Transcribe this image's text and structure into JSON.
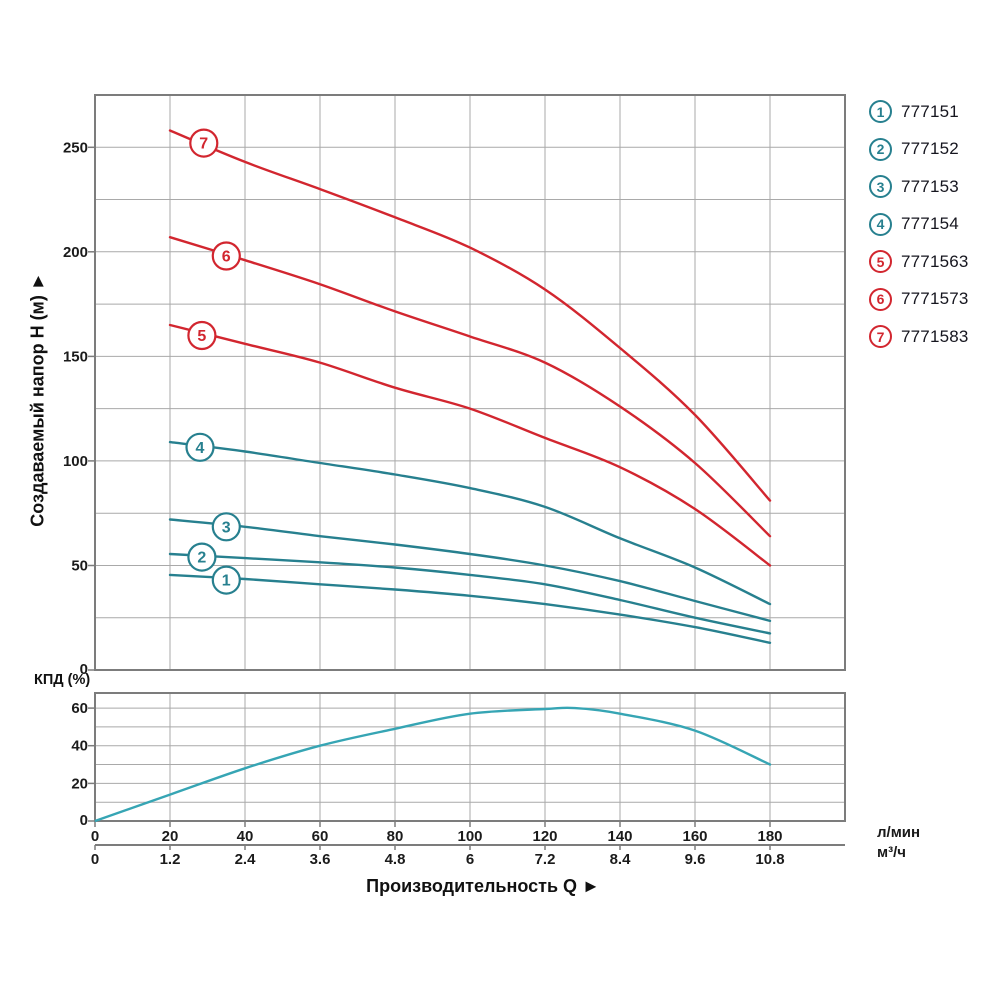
{
  "figure": {
    "y_axis_title": "Создаваемый напор H (м) ►",
    "x_axis_title": "Производительность Q ►",
    "eff_axis_label": "КПД (%)",
    "unit_flow_lmin": "л/мин",
    "unit_flow_m3h": "м³/ч"
  },
  "colors": {
    "teal_series": "#27808F",
    "red_series": "#D2262F",
    "efficiency_curve": "#36A5B4",
    "grid": "#A9A9A9",
    "border": "#7C7C7C",
    "tick_text": "#1B1B1B",
    "legend_text": "#16161F",
    "title_text": "#111111"
  },
  "legend": [
    {
      "num": "1",
      "code": "777151",
      "color": "#27808F"
    },
    {
      "num": "2",
      "code": "777152",
      "color": "#27808F"
    },
    {
      "num": "3",
      "code": "777153",
      "color": "#27808F"
    },
    {
      "num": "4",
      "code": "777154",
      "color": "#27808F"
    },
    {
      "num": "5",
      "code": "7771563",
      "color": "#D2262F"
    },
    {
      "num": "6",
      "code": "7771573",
      "color": "#D2262F"
    },
    {
      "num": "7",
      "code": "7771583",
      "color": "#D2262F"
    }
  ],
  "chart_data": [
    {
      "type": "line",
      "name": "head-flow-curves",
      "title": "",
      "xlabel": "Производительность Q ►",
      "ylabel": "Создаваемый напор H (м) ►",
      "x_units": [
        "л/мин",
        "м³/ч"
      ],
      "xlim": [
        0,
        200
      ],
      "ylim": [
        0,
        275
      ],
      "grid": true,
      "x_grid_step": 20,
      "y_grid_step": 25,
      "x_ticks_lmin": [
        0,
        20,
        40,
        60,
        80,
        100,
        120,
        140,
        160,
        180
      ],
      "x_ticks_m3h": [
        "0",
        "1.2",
        "2.4",
        "3.6",
        "4.8",
        "6",
        "7.2",
        "8.4",
        "9.6",
        "10.8"
      ],
      "y_ticks": [
        0,
        50,
        100,
        150,
        200,
        250
      ],
      "legend_position": "right",
      "series": [
        {
          "marker": "1",
          "name": "777151",
          "color": "#27808F",
          "label_at": [
            35,
            43
          ],
          "points": [
            [
              20,
              45.5
            ],
            [
              40,
              43.5
            ],
            [
              60,
              41
            ],
            [
              80,
              38.5
            ],
            [
              100,
              35.5
            ],
            [
              120,
              31.5
            ],
            [
              140,
              26.5
            ],
            [
              160,
              20.5
            ],
            [
              180,
              13
            ]
          ]
        },
        {
          "marker": "2",
          "name": "777152",
          "color": "#27808F",
          "label_at": [
            28.5,
            54
          ],
          "points": [
            [
              20,
              55.5
            ],
            [
              40,
              53.5
            ],
            [
              60,
              51.5
            ],
            [
              80,
              49
            ],
            [
              100,
              45.5
            ],
            [
              120,
              41
            ],
            [
              140,
              33.5
            ],
            [
              160,
              25
            ],
            [
              180,
              17.5
            ]
          ]
        },
        {
          "marker": "3",
          "name": "777153",
          "color": "#27808F",
          "label_at": [
            35,
            68.5
          ],
          "points": [
            [
              20,
              72
            ],
            [
              40,
              68.5
            ],
            [
              60,
              64
            ],
            [
              80,
              60
            ],
            [
              100,
              55.5
            ],
            [
              120,
              50
            ],
            [
              140,
              42.5
            ],
            [
              160,
              33
            ],
            [
              180,
              23.5
            ]
          ]
        },
        {
          "marker": "4",
          "name": "777154",
          "color": "#27808F",
          "label_at": [
            28,
            106.5
          ],
          "points": [
            [
              20,
              109
            ],
            [
              40,
              104.5
            ],
            [
              60,
              99
            ],
            [
              80,
              93.5
            ],
            [
              100,
              87
            ],
            [
              120,
              78
            ],
            [
              140,
              63
            ],
            [
              160,
              49
            ],
            [
              180,
              31.5
            ]
          ]
        },
        {
          "marker": "5",
          "name": "7771563",
          "color": "#D2262F",
          "label_at": [
            28.5,
            160
          ],
          "points": [
            [
              20,
              165
            ],
            [
              40,
              156
            ],
            [
              60,
              147
            ],
            [
              80,
              135
            ],
            [
              100,
              125
            ],
            [
              120,
              111
            ],
            [
              140,
              97
            ],
            [
              160,
              77
            ],
            [
              180,
              50
            ]
          ]
        },
        {
          "marker": "6",
          "name": "7771573",
          "color": "#D2262F",
          "label_at": [
            35,
            198
          ],
          "points": [
            [
              20,
              207
            ],
            [
              40,
              196
            ],
            [
              60,
              184.5
            ],
            [
              80,
              171.5
            ],
            [
              100,
              159.5
            ],
            [
              120,
              147
            ],
            [
              140,
              126
            ],
            [
              160,
              99
            ],
            [
              180,
              64
            ]
          ]
        },
        {
          "marker": "7",
          "name": "7771583",
          "color": "#D2262F",
          "label_at": [
            29,
            252
          ],
          "points": [
            [
              20,
              258
            ],
            [
              40,
              243
            ],
            [
              60,
              230
            ],
            [
              80,
              216.5
            ],
            [
              100,
              202
            ],
            [
              120,
              182
            ],
            [
              140,
              154
            ],
            [
              160,
              122
            ],
            [
              180,
              81
            ]
          ]
        }
      ]
    },
    {
      "type": "line",
      "name": "efficiency-curve",
      "title": "",
      "xlabel": "",
      "ylabel": "КПД (%)",
      "xlim": [
        0,
        200
      ],
      "ylim": [
        0,
        68
      ],
      "grid": true,
      "x_grid_step": 20,
      "y_grid_step": 10,
      "y_ticks": [
        0,
        20,
        40,
        60
      ],
      "series": [
        {
          "name": "КПД",
          "color": "#36A5B4",
          "points": [
            [
              0,
              0
            ],
            [
              20,
              14
            ],
            [
              40,
              28
            ],
            [
              60,
              40
            ],
            [
              80,
              49
            ],
            [
              100,
              57
            ],
            [
              120,
              59.5
            ],
            [
              128,
              60
            ],
            [
              140,
              57
            ],
            [
              160,
              48
            ],
            [
              180,
              30
            ]
          ]
        }
      ]
    }
  ]
}
